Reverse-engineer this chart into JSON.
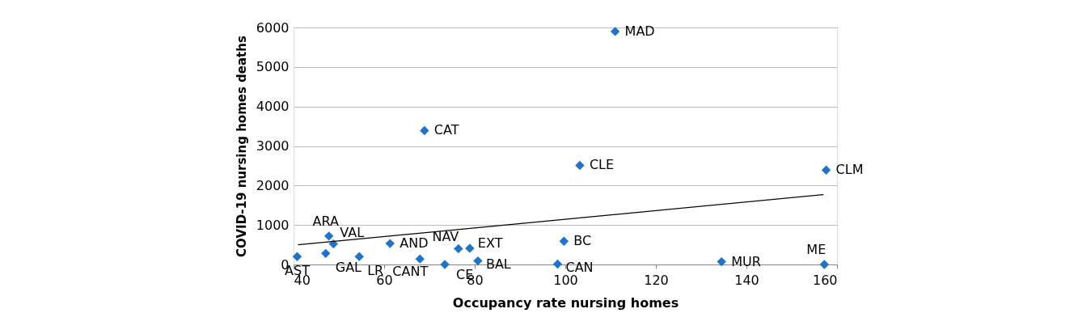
{
  "chart_data": {
    "type": "scatter",
    "xlabel": "Occupancy rate nursing homes",
    "ylabel": "COVID-19 nursing homes deaths",
    "xlim": [
      40,
      160
    ],
    "xticks": [
      40,
      60,
      80,
      100,
      120,
      140,
      160
    ],
    "ylim": [
      0,
      6000
    ],
    "yticks": [
      0,
      1000,
      2000,
      3000,
      4000,
      5000,
      6000
    ],
    "grid": "y",
    "series": [
      {
        "marker": "diamond",
        "color": "#1f74c8",
        "x": [
          40.8,
          47.8,
          48.8,
          47.1,
          54.5,
          61.3,
          67.9,
          73.4,
          76.4,
          78.9,
          80.7,
          99.7,
          98.3,
          134.5,
          157.2,
          111,
          68.9,
          103.2,
          157.6
        ],
        "values": [
          200,
          720,
          520,
          280,
          200,
          530,
          140,
          0,
          400,
          410,
          90,
          590,
          10,
          70,
          0,
          5900,
          3390,
          2510,
          2390
        ]
      },
      {
        "type": "line",
        "color": "#000000",
        "x": [
          41,
          157
        ],
        "values": [
          500,
          1770
        ]
      }
    ],
    "annotations": [
      {
        "text": "AST",
        "x": 40.8,
        "y": 200
      },
      {
        "text": "ARA",
        "x": 47.8,
        "y": 720
      },
      {
        "text": "VAL",
        "x": 48.8,
        "y": 520
      },
      {
        "text": "GAL",
        "x": 47.1,
        "y": 280
      },
      {
        "text": "LR",
        "x": 54.5,
        "y": 200
      },
      {
        "text": "AND",
        "x": 61.3,
        "y": 530
      },
      {
        "text": "CANT",
        "x": 67.9,
        "y": 140
      },
      {
        "text": "CE",
        "x": 73.4,
        "y": 0
      },
      {
        "text": "NAV",
        "x": 76.4,
        "y": 400
      },
      {
        "text": "EXT",
        "x": 78.9,
        "y": 410
      },
      {
        "text": "BAL",
        "x": 80.7,
        "y": 90
      },
      {
        "text": "BC",
        "x": 99.7,
        "y": 590
      },
      {
        "text": "CAN",
        "x": 98.3,
        "y": 10
      },
      {
        "text": "MUR",
        "x": 134.5,
        "y": 70
      },
      {
        "text": "ME",
        "x": 157.2,
        "y": 0
      },
      {
        "text": "MAD",
        "x": 111,
        "y": 5900
      },
      {
        "text": "CAT",
        "x": 68.9,
        "y": 3390
      },
      {
        "text": "CLE",
        "x": 103.2,
        "y": 2510
      },
      {
        "text": "CLM",
        "x": 157.6,
        "y": 2390
      }
    ]
  }
}
